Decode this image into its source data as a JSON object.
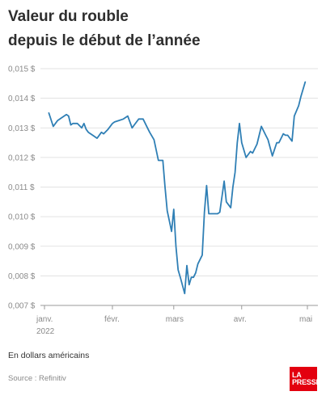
{
  "header": {
    "title_line1": "Valeur du rouble",
    "title_line2": "depuis le début de l’année"
  },
  "footer": {
    "note": "En dollars américains",
    "source": "Source : Refinitiv",
    "logo_line1": "LA",
    "logo_line2": "PRESSE"
  },
  "colors": {
    "line": "#2f7fb5",
    "grid": "#d9d9d9",
    "axis_text": "#8a8a8a",
    "logo_bg": "#e3000f"
  },
  "chart_data": {
    "type": "line",
    "title": "Valeur du rouble depuis le début de l’année",
    "xlabel": "",
    "ylabel": "",
    "ylim": [
      0.007,
      0.015
    ],
    "yticks": [
      0.007,
      0.008,
      0.009,
      0.01,
      0.011,
      0.012,
      0.013,
      0.014,
      0.015
    ],
    "ytick_labels": [
      "0,007 $",
      "0,008 $",
      "0,009 $",
      "0,010 $",
      "0,011 $",
      "0,012 $",
      "0,013 $",
      "0,014 $",
      "0,015 $"
    ],
    "xticks": [
      {
        "date": "2022-01-01",
        "label": "janv.",
        "sublabel": "2022"
      },
      {
        "date": "2022-02-01",
        "label": "févr.",
        "sublabel": ""
      },
      {
        "date": "2022-03-01",
        "label": "mars",
        "sublabel": ""
      },
      {
        "date": "2022-04-01",
        "label": "avr.",
        "sublabel": ""
      },
      {
        "date": "2022-05-01",
        "label": "mai",
        "sublabel": ""
      }
    ],
    "xlim": [
      "2022-01-01",
      "2022-05-01"
    ],
    "grid": true,
    "series": [
      {
        "name": "",
        "x": [
          "2022-01-03",
          "2022-01-05",
          "2022-01-07",
          "2022-01-09",
          "2022-01-11",
          "2022-01-12",
          "2022-01-13",
          "2022-01-14",
          "2022-01-16",
          "2022-01-18",
          "2022-01-19",
          "2022-01-20",
          "2022-01-21",
          "2022-01-23",
          "2022-01-25",
          "2022-01-27",
          "2022-01-28",
          "2022-01-30",
          "2022-02-01",
          "2022-02-02",
          "2022-02-04",
          "2022-02-06",
          "2022-02-08",
          "2022-02-10",
          "2022-02-11",
          "2022-02-13",
          "2022-02-15",
          "2022-02-17",
          "2022-02-18",
          "2022-02-20",
          "2022-02-22",
          "2022-02-24",
          "2022-02-25",
          "2022-02-26",
          "2022-02-27",
          "2022-02-28",
          "2022-03-01",
          "2022-03-02",
          "2022-03-03",
          "2022-03-04",
          "2022-03-06",
          "2022-03-07",
          "2022-03-08",
          "2022-03-09",
          "2022-03-10",
          "2022-03-11",
          "2022-03-12",
          "2022-03-14",
          "2022-03-15",
          "2022-03-16",
          "2022-03-17",
          "2022-03-18",
          "2022-03-19",
          "2022-03-21",
          "2022-03-22",
          "2022-03-24",
          "2022-03-25",
          "2022-03-27",
          "2022-03-28",
          "2022-03-29",
          "2022-03-30",
          "2022-03-31",
          "2022-04-01",
          "2022-04-03",
          "2022-04-05",
          "2022-04-06",
          "2022-04-08",
          "2022-04-10",
          "2022-04-12",
          "2022-04-13",
          "2022-04-15",
          "2022-04-17",
          "2022-04-18",
          "2022-04-20",
          "2022-04-21",
          "2022-04-22",
          "2022-04-24",
          "2022-04-25",
          "2022-04-27",
          "2022-04-28",
          "2022-04-30"
        ],
        "values": [
          0.0135,
          0.01305,
          0.01325,
          0.01335,
          0.01345,
          0.0134,
          0.0131,
          0.01315,
          0.01315,
          0.013,
          0.01315,
          0.01295,
          0.01285,
          0.01275,
          0.01265,
          0.01285,
          0.0128,
          0.01295,
          0.01315,
          0.0132,
          0.01325,
          0.0133,
          0.0134,
          0.013,
          0.0131,
          0.0133,
          0.0133,
          0.013,
          0.01285,
          0.0126,
          0.0119,
          0.0119,
          0.011,
          0.0102,
          0.00985,
          0.0095,
          0.01025,
          0.009,
          0.0082,
          0.00795,
          0.0074,
          0.00835,
          0.0077,
          0.00795,
          0.00795,
          0.0081,
          0.0084,
          0.0087,
          0.01015,
          0.01105,
          0.0101,
          0.0101,
          0.0101,
          0.0101,
          0.01015,
          0.0112,
          0.0105,
          0.0103,
          0.011,
          0.0115,
          0.0125,
          0.01315,
          0.0125,
          0.012,
          0.0122,
          0.01215,
          0.01245,
          0.01305,
          0.01275,
          0.0126,
          0.01205,
          0.0125,
          0.0125,
          0.0128,
          0.01275,
          0.01275,
          0.01255,
          0.0134,
          0.01375,
          0.01405,
          0.01455
        ]
      }
    ]
  }
}
